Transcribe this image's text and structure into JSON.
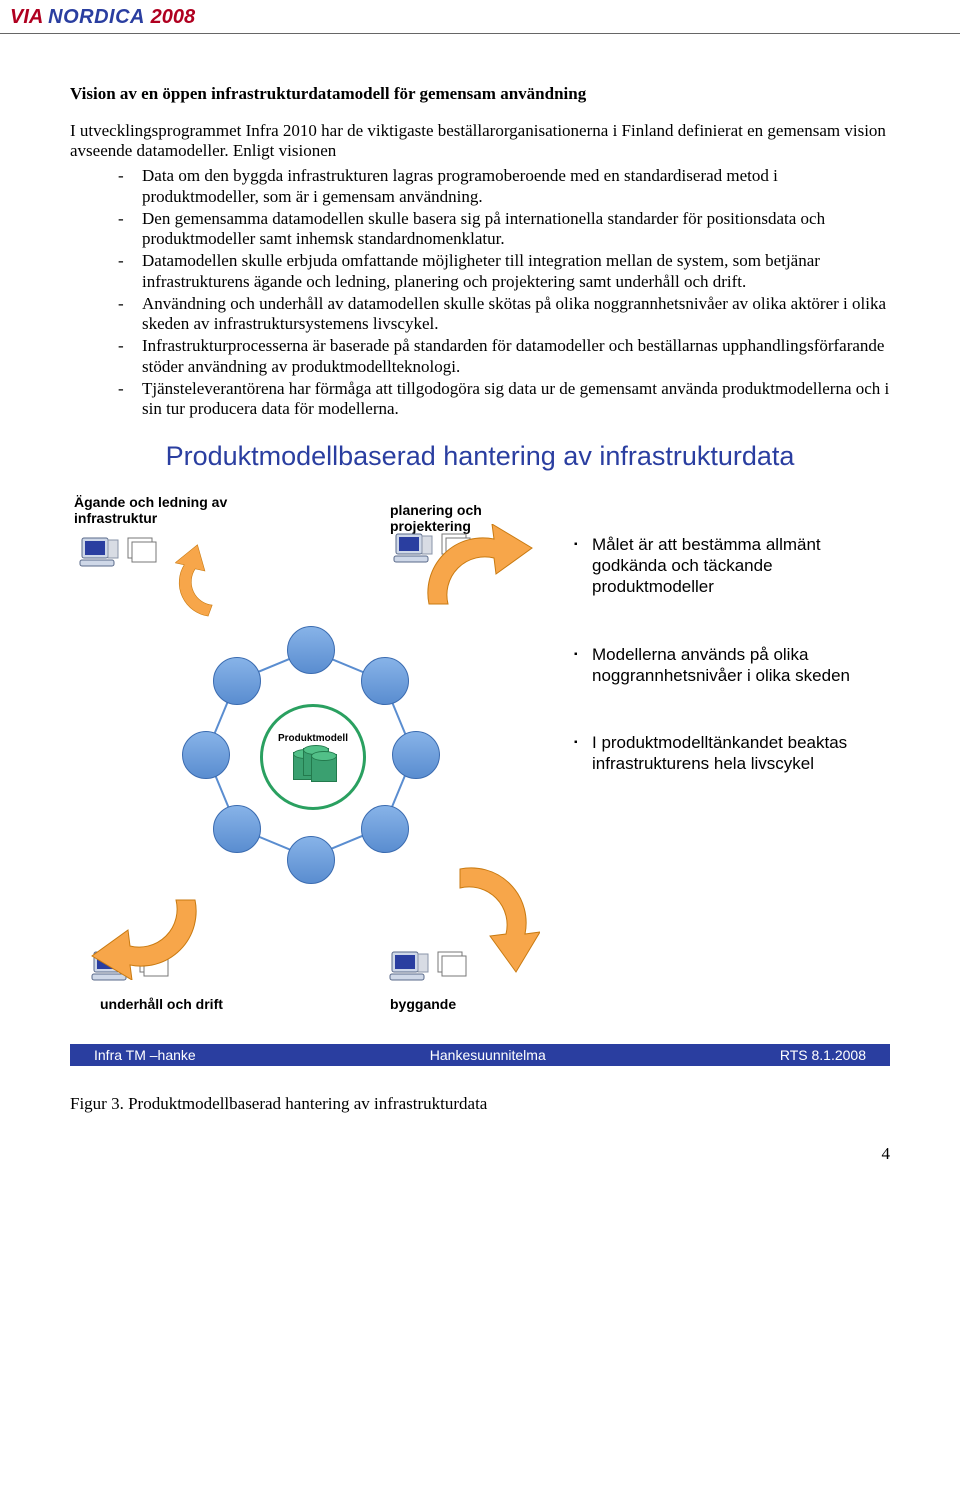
{
  "header": {
    "logo_via": "VIA",
    "logo_nordica": "NORDICA",
    "logo_year": "2008"
  },
  "doc": {
    "section_title": "Vision av en öppen infrastrukturdatamodell för gemensam användning",
    "intro": "I utvecklingsprogrammet Infra 2010 har de viktigaste beställarorganisationerna i Finland definierat en gemensam vision avseende datamodeller. Enligt visionen",
    "bullets": [
      "Data om den byggda infrastrukturen lagras programoberoende med en standardiserad metod i produktmodeller, som är i gemensam användning.",
      "Den gemensamma datamodellen skulle basera sig på internationella standarder för positionsdata och produktmodeller samt inhemsk standardnomenklatur.",
      "Datamodellen skulle erbjuda omfattande möjligheter till integration mellan de system, som betjänar infrastrukturens ägande och ledning, planering och projektering samt underhåll och drift.",
      "Användning och underhåll av datamodellen skulle skötas på olika noggrannhetsnivåer av olika aktörer i olika skeden av infrastruktursystemens livscykel.",
      "Infrastrukturprocesserna är baserade på standarden för datamodeller och beställarnas upphandlingsförfarande stöder användning av produktmodellteknologi.",
      "Tjänsteleverantörena har förmåga att tillgodogöra sig data ur de gemensamt använda produktmodellerna och i sin tur producera data för modellerna."
    ],
    "figure_caption": "Figur 3. Produktmodellbaserad hantering av infrastrukturdata",
    "page_number": "4"
  },
  "diagram": {
    "title": "Produktmodellbaserad hantering av infrastrukturdata",
    "corners": {
      "tl": "Ägande och ledning av\ninfrastruktur",
      "tr": "planering och\nprojektering",
      "br": "byggande",
      "bl": "underhåll och drift"
    },
    "center_label": "Produktmodell",
    "side_bullets": [
      "Målet är att bestämma allmänt godkända och täckande produktmodeller",
      "Modellerna används på olika noggrannhetsnivåer i olika skeden",
      "I produktmodelltänkandet beaktas infrastrukturens hela livscykel"
    ],
    "colors": {
      "title": "#2a3ea0",
      "arrow_fill": "#f7a64a",
      "arrow_stroke": "#c97a10",
      "node_fill": "#5a8dd0",
      "core_ring": "#2aa060",
      "cylinder": "#3aa070",
      "footer_bg": "#2a3ea0"
    },
    "ring_nodes": 8,
    "ring_radius": 105
  },
  "footer": {
    "left": "Infra TM –hanke",
    "center": "Hankesuunnitelma",
    "right": "RTS  8.1.2008"
  }
}
